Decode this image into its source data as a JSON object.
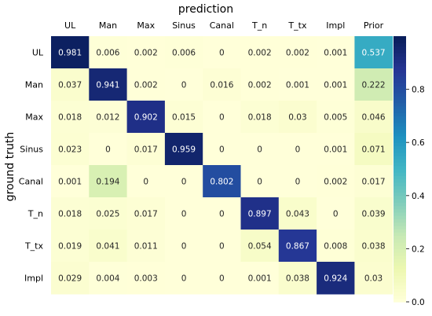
{
  "chart_data": {
    "type": "heatmap",
    "title": "prediction",
    "xlabel": "prediction",
    "ylabel": "ground truth",
    "x_categories": [
      "UL",
      "Man",
      "Max",
      "Sinus",
      "Canal",
      "T_n",
      "T_tx",
      "Impl",
      "Prior"
    ],
    "y_categories": [
      "UL",
      "Man",
      "Max",
      "Sinus",
      "Canal",
      "T_n",
      "T_tx",
      "Impl"
    ],
    "values": [
      [
        "0.981",
        "0.006",
        "0.002",
        "0.006",
        "0",
        "0.002",
        "0.002",
        "0.001",
        "0.537"
      ],
      [
        "0.037",
        "0.941",
        "0.002",
        "0",
        "0.016",
        "0.002",
        "0.001",
        "0.001",
        "0.222"
      ],
      [
        "0.018",
        "0.012",
        "0.902",
        "0.015",
        "0",
        "0.018",
        "0.03",
        "0.005",
        "0.046"
      ],
      [
        "0.023",
        "0",
        "0.017",
        "0.959",
        "0",
        "0",
        "0",
        "0.001",
        "0.071"
      ],
      [
        "0.001",
        "0.194",
        "0",
        "0",
        "0.802",
        "0",
        "0",
        "0.002",
        "0.017"
      ],
      [
        "0.018",
        "0.025",
        "0.017",
        "0",
        "0",
        "0.897",
        "0.043",
        "0",
        "0.039"
      ],
      [
        "0.019",
        "0.041",
        "0.011",
        "0",
        "0",
        "0.054",
        "0.867",
        "0.008",
        "0.038"
      ],
      [
        "0.029",
        "0.004",
        "0.003",
        "0",
        "0",
        "0.001",
        "0.038",
        "0.924",
        "0.03"
      ]
    ],
    "colorscale": "YlGnBu",
    "color_range": [
      0,
      1
    ],
    "colorbar_ticks": [
      "0.0",
      "0.2",
      "0.4",
      "0.6",
      "0.8"
    ],
    "colorbar_tick_values": [
      0,
      0.2,
      0.4,
      0.6,
      0.8
    ],
    "x_axis_position": "top"
  }
}
